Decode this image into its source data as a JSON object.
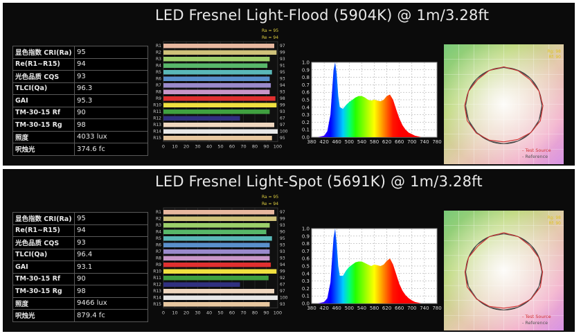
{
  "panels": [
    {
      "title": "LED Fresnel Light-Flood (5904K) @ 1m/3.28ft",
      "metrics": [
        {
          "label": "显色指数 CRI(Ra)",
          "value": "95"
        },
        {
          "label": "Re(R1~R15)",
          "value": "94"
        },
        {
          "label": "光色品质 CQS",
          "value": "93"
        },
        {
          "label": "TLCI(Qa)",
          "value": "96.3"
        },
        {
          "label": "GAI",
          "value": "95.3"
        },
        {
          "label": "TM-30-15 Rf",
          "value": "90"
        },
        {
          "label": "TM-30-15 Rg",
          "value": "98"
        },
        {
          "label": "照度",
          "value": "4033 lux"
        },
        {
          "label": "呎烛光",
          "value": "374.6 fc"
        }
      ],
      "chart_data": [
        {
          "type": "bar",
          "orientation": "horizontal",
          "header": [
            "Ra = 95",
            "Re = 94"
          ],
          "categories": [
            "R1",
            "R2",
            "R3",
            "R4",
            "R5",
            "R6",
            "R7",
            "R8",
            "R9",
            "R10",
            "R11",
            "R12",
            "R13",
            "R14",
            "R15"
          ],
          "values": [
            97,
            99,
            93,
            91,
            95,
            93,
            94,
            93,
            98,
            99,
            93,
            67,
            97,
            100,
            95
          ],
          "colors": [
            "#e8b8a0",
            "#cfc27a",
            "#9ccf6a",
            "#58b86a",
            "#5ab8b8",
            "#5a90cc",
            "#9a8acc",
            "#c896c8",
            "#e03030",
            "#f0e040",
            "#40a040",
            "#303080",
            "#f0d8c0",
            "#e8e8e8",
            "#e8c8a0"
          ],
          "xlim": [
            0,
            100
          ],
          "xticks": [
            "0",
            "10",
            "20",
            "30",
            "40",
            "50",
            "60",
            "70",
            "80",
            "90",
            "100"
          ]
        },
        {
          "type": "area",
          "xlim": [
            380,
            780
          ],
          "ylim": [
            0,
            1.0
          ],
          "xticks": [
            "380",
            "420",
            "460",
            "500",
            "540",
            "580",
            "620",
            "660",
            "700",
            "740",
            "780"
          ],
          "yticks": [
            "0.0",
            "0.1",
            "0.2",
            "0.3",
            "0.4",
            "0.5",
            "0.6",
            "0.7",
            "0.8",
            "0.9",
            "1.0"
          ],
          "grid": true,
          "x": [
            380,
            400,
            420,
            430,
            440,
            445,
            450,
            455,
            460,
            465,
            470,
            480,
            490,
            500,
            510,
            520,
            530,
            540,
            550,
            560,
            570,
            580,
            590,
            600,
            610,
            620,
            630,
            640,
            650,
            660,
            670,
            680,
            690,
            700,
            710,
            720,
            730,
            740,
            760,
            780
          ],
          "y": [
            0,
            0,
            0.02,
            0.08,
            0.3,
            0.6,
            0.9,
            1.0,
            0.85,
            0.55,
            0.4,
            0.38,
            0.43,
            0.47,
            0.5,
            0.53,
            0.55,
            0.55,
            0.53,
            0.5,
            0.49,
            0.5,
            0.49,
            0.48,
            0.5,
            0.55,
            0.57,
            0.5,
            0.37,
            0.25,
            0.16,
            0.1,
            0.06,
            0.04,
            0.02,
            0.01,
            0,
            0,
            0,
            0
          ]
        },
        {
          "type": "scatter",
          "legend": [
            "Test Source",
            "Reference"
          ],
          "legend_colors": [
            "#d03030",
            "#555555"
          ],
          "corner_labels": [
            "Rg: 98",
            "Rf: 90"
          ],
          "test_radii": [
            1.02,
            0.99,
            0.97,
            1.0,
            1.03,
            1.04,
            1.0,
            0.96,
            0.95,
            0.98,
            1.02,
            1.04,
            1.03,
            1.0,
            0.97,
            1.0
          ]
        }
      ]
    },
    {
      "title": "LED Fresnel Light-Spot (5691K) @ 1m/3.28ft",
      "metrics": [
        {
          "label": "显色指数 CRI(Ra)",
          "value": "95"
        },
        {
          "label": "Re(R1~R15)",
          "value": "94"
        },
        {
          "label": "光色品质 CQS",
          "value": "93"
        },
        {
          "label": "TLCI(Qa)",
          "value": "96.4"
        },
        {
          "label": "GAI",
          "value": "93.1"
        },
        {
          "label": "TM-30-15 Rf",
          "value": "90"
        },
        {
          "label": "TM-30-15 Rg",
          "value": "98"
        },
        {
          "label": "照度",
          "value": "9466 lux"
        },
        {
          "label": "呎烛光",
          "value": "879.4 fc"
        }
      ],
      "chart_data": [
        {
          "type": "bar",
          "orientation": "horizontal",
          "header": [
            "Ra = 95",
            "Re = 94"
          ],
          "categories": [
            "R1",
            "R2",
            "R3",
            "R4",
            "R5",
            "R6",
            "R7",
            "R8",
            "R9",
            "R10",
            "R11",
            "R12",
            "R13",
            "R14",
            "R15"
          ],
          "values": [
            97,
            99,
            93,
            90,
            95,
            93,
            93,
            93,
            94,
            99,
            92,
            67,
            97,
            100,
            93
          ],
          "colors": [
            "#e8b8a0",
            "#cfc27a",
            "#9ccf6a",
            "#58b86a",
            "#5ab8b8",
            "#5a90cc",
            "#9a8acc",
            "#c896c8",
            "#e03030",
            "#f0e040",
            "#40a040",
            "#303080",
            "#f0d8c0",
            "#e8e8e8",
            "#e8c8a0"
          ],
          "xlim": [
            0,
            100
          ],
          "xticks": [
            "0",
            "10",
            "20",
            "30",
            "40",
            "50",
            "60",
            "70",
            "80",
            "90",
            "100"
          ]
        },
        {
          "type": "area",
          "xlim": [
            380,
            780
          ],
          "ylim": [
            0,
            1.0
          ],
          "xticks": [
            "380",
            "420",
            "460",
            "500",
            "540",
            "580",
            "620",
            "660",
            "700",
            "740",
            "780"
          ],
          "yticks": [
            "0.0",
            "0.1",
            "0.2",
            "0.3",
            "0.4",
            "0.5",
            "0.6",
            "0.7",
            "0.8",
            "0.9",
            "1.0"
          ],
          "grid": true,
          "x": [
            380,
            400,
            420,
            430,
            440,
            445,
            450,
            455,
            460,
            465,
            470,
            480,
            490,
            500,
            510,
            520,
            530,
            540,
            550,
            560,
            570,
            580,
            590,
            600,
            610,
            620,
            630,
            640,
            650,
            660,
            670,
            680,
            690,
            700,
            710,
            720,
            730,
            740,
            760,
            780
          ],
          "y": [
            0,
            0,
            0.02,
            0.07,
            0.28,
            0.58,
            0.88,
            1.0,
            0.8,
            0.5,
            0.37,
            0.37,
            0.44,
            0.49,
            0.52,
            0.55,
            0.56,
            0.56,
            0.54,
            0.52,
            0.5,
            0.52,
            0.51,
            0.5,
            0.52,
            0.57,
            0.6,
            0.52,
            0.39,
            0.26,
            0.17,
            0.11,
            0.07,
            0.04,
            0.02,
            0.01,
            0,
            0,
            0,
            0
          ]
        },
        {
          "type": "scatter",
          "legend": [
            "Test Source",
            "Reference"
          ],
          "legend_colors": [
            "#d03030",
            "#555555"
          ],
          "corner_labels": [
            "Rg: 98",
            "Rf: 90"
          ],
          "test_radii": [
            1.03,
            1.0,
            0.97,
            0.99,
            1.02,
            1.04,
            1.01,
            0.97,
            0.95,
            0.98,
            1.01,
            1.04,
            1.02,
            1.0,
            0.96,
            1.0
          ]
        }
      ]
    }
  ]
}
